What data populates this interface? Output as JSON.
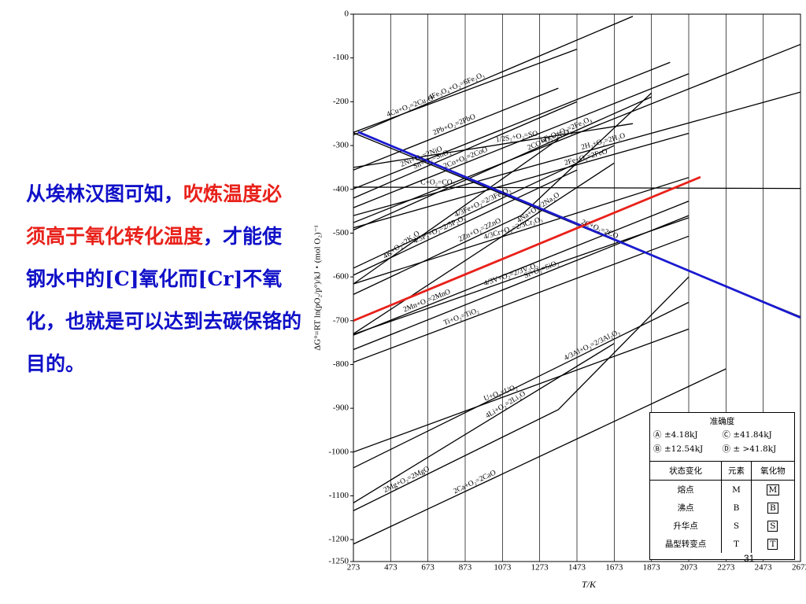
{
  "slide_text": {
    "parts": [
      "从埃林汉图可知，",
      "吹炼温度必须高于氧化转化温度",
      "，才能使钢水中的[C]氧化而[Cr]不氧化，也就是可以达到去碳保铬的目的。"
    ]
  },
  "page_number": "31",
  "chart_data": {
    "type": "line",
    "x_label": "T/K",
    "y_label": "ΔG°=RT ln(pO₂/p°)/kJ・(mol O₂)⁻¹",
    "xlim": [
      273,
      2673
    ],
    "ylim": [
      -1250,
      0
    ],
    "xticks": [
      273,
      473,
      673,
      873,
      1073,
      1273,
      1473,
      1673,
      1873,
      2073,
      2273,
      2473,
      2673
    ],
    "yticks": [
      0,
      -100,
      -200,
      -300,
      -400,
      -500,
      -600,
      -700,
      -800,
      -900,
      -1000,
      -1100,
      -1200,
      -1250
    ],
    "grid": true,
    "series": [
      {
        "name": "4Cu+O₂=2Cu₂O",
        "color": "#000000",
        "x": [
          273,
          1473
        ],
        "values": [
          -270,
          -80
        ]
      },
      {
        "name": "4Fe₃O₄+O₂=6Fe₂O₃",
        "color": "#000000",
        "x": [
          273,
          1773
        ],
        "values": [
          -276,
          -5
        ]
      },
      {
        "name": "2Pb+O₂=2PbO",
        "color": "#000000",
        "x": [
          273,
          1373
        ],
        "values": [
          -356,
          -169
        ]
      },
      {
        "name": "1/2S₂+O₂=SO₂",
        "color": "#000000",
        "x": [
          273,
          1773
        ],
        "values": [
          -350,
          -250
        ]
      },
      {
        "name": "6FeO+O₂=2Fe₃O₄",
        "color": "#000000",
        "x": [
          273,
          1873
        ],
        "values": [
          -493,
          -189
        ]
      },
      {
        "name": "2Ni+O₂=2NiO",
        "color": "#000000",
        "x": [
          273,
          1973
        ],
        "values": [
          -399,
          -110
        ]
      },
      {
        "name": "2Co+O₂=2CoO",
        "color": "#000000",
        "x": [
          273,
          2073
        ],
        "values": [
          -442,
          -136
        ]
      },
      {
        "name": "2CO+O₂=2CO₂",
        "color": "#000000",
        "x": [
          273,
          2673
        ],
        "values": [
          -476,
          -69
        ]
      },
      {
        "name": "2H₂+O₂=2H₂O",
        "color": "#000000",
        "x": [
          273,
          2673
        ],
        "values": [
          -460,
          -178
        ]
      },
      {
        "name": "2Fe+O₂=2FeO",
        "color": "#000000",
        "x": [
          273,
          2073
        ],
        "values": [
          -488,
          -272
        ]
      },
      {
        "name": "C+O₂=CO₂",
        "color": "#000000",
        "x": [
          273,
          2673
        ],
        "values": [
          -395,
          -398
        ]
      },
      {
        "name": "Sn+O₂=SnO₂",
        "color": "#000000",
        "x": [
          273,
          1473
        ],
        "values": [
          -420,
          -200
        ]
      },
      {
        "name": "4/3Cr+O₂=2/3Cr₂O₃",
        "color": "#000000",
        "x": [
          273,
          2073
        ],
        "values": [
          -616,
          -373
        ]
      },
      {
        "name": "2C+O₂=2CO",
        "color": "#000000",
        "x": [
          273,
          2673
        ],
        "values": [
          -271,
          -691
        ]
      },
      {
        "name": "4Na+O₂=2Na₂O",
        "color": "#000000",
        "x": [
          273,
          1673
        ],
        "values": [
          -730,
          -340
        ]
      },
      {
        "name": "2Mn+O₂=2MnO",
        "color": "#000000",
        "x": [
          273,
          2073
        ],
        "values": [
          -733,
          -427
        ]
      },
      {
        "name": "Ti+O₂=TiO₂",
        "color": "#000000",
        "x": [
          273,
          2073
        ],
        "values": [
          -795,
          -507
        ]
      },
      {
        "name": "4/3V+O₂=2/3V₂O₃",
        "color": "#000000",
        "x": [
          273,
          2073
        ],
        "values": [
          -731,
          -465
        ]
      },
      {
        "name": "Si+O₂=SiO₂",
        "color": "#000000",
        "x": [
          273,
          2073
        ],
        "values": [
          -766,
          -460
        ]
      },
      {
        "name": "4/3Al+O₂=2/3Al₂O₃",
        "color": "#000000",
        "x": [
          273,
          2073
        ],
        "values": [
          -1036,
          -658
        ]
      },
      {
        "name": "2Mg+O₂=2MgO",
        "color": "#000000",
        "x": [
          273,
          1373,
          2073
        ],
        "values": [
          -1134,
          -903,
          -600
        ]
      },
      {
        "name": "2Ca+O₂=2CaO",
        "color": "#000000",
        "x": [
          273,
          2273
        ],
        "values": [
          -1210,
          -810
        ]
      },
      {
        "name": "U+O₂=UO₂",
        "color": "#000000",
        "x": [
          273,
          2073
        ],
        "values": [
          -1000,
          -719
        ]
      },
      {
        "name": "4Li+O₂=2Li₂O",
        "color": "#000000",
        "x": [
          273,
          1673
        ],
        "values": [
          -1116,
          -752
        ]
      },
      {
        "name": "2Zn+O₂=2ZnO",
        "color": "#000000",
        "x": [
          273,
          1173,
          1873
        ],
        "values": [
          -640,
          -460,
          -180
        ]
      },
      {
        "name": "4K+O₂=2K₂O",
        "color": "#000000",
        "x": [
          273,
          1373
        ],
        "values": [
          -616,
          -286
        ]
      },
      {
        "name": "4/5P₂+O₂=2/5P₂O₅",
        "color": "#000000",
        "x": [
          273,
          1473
        ],
        "values": [
          -596,
          -356
        ]
      },
      {
        "name": "4/3Fe+O₂=2/3Fe₂O₃",
        "color": "#000000",
        "x": [
          273,
          1673
        ],
        "values": [
          -580,
          -300
        ]
      },
      {
        "color": "#1a1ad0",
        "x": [
          298,
          2673
        ],
        "values": [
          -269,
          -693
        ]
      },
      {
        "color": "#e8211a",
        "x": [
          273,
          2136
        ],
        "values": [
          -700,
          -372
        ]
      }
    ]
  },
  "legend_table": {
    "title": "准确度",
    "accuracy": [
      "Ⓐ ±4.18kJ",
      "Ⓒ ±41.84kJ",
      "Ⓑ ±12.54kJ",
      "Ⓓ ± >41.8kJ"
    ],
    "headers": [
      "状态变化",
      "元素",
      "氧化物"
    ],
    "rows": [
      [
        "熔点",
        "M",
        "M"
      ],
      [
        "沸点",
        "B",
        "B"
      ],
      [
        "升华点",
        "S",
        "S"
      ],
      [
        "晶型转变点",
        "T",
        "T"
      ]
    ]
  }
}
